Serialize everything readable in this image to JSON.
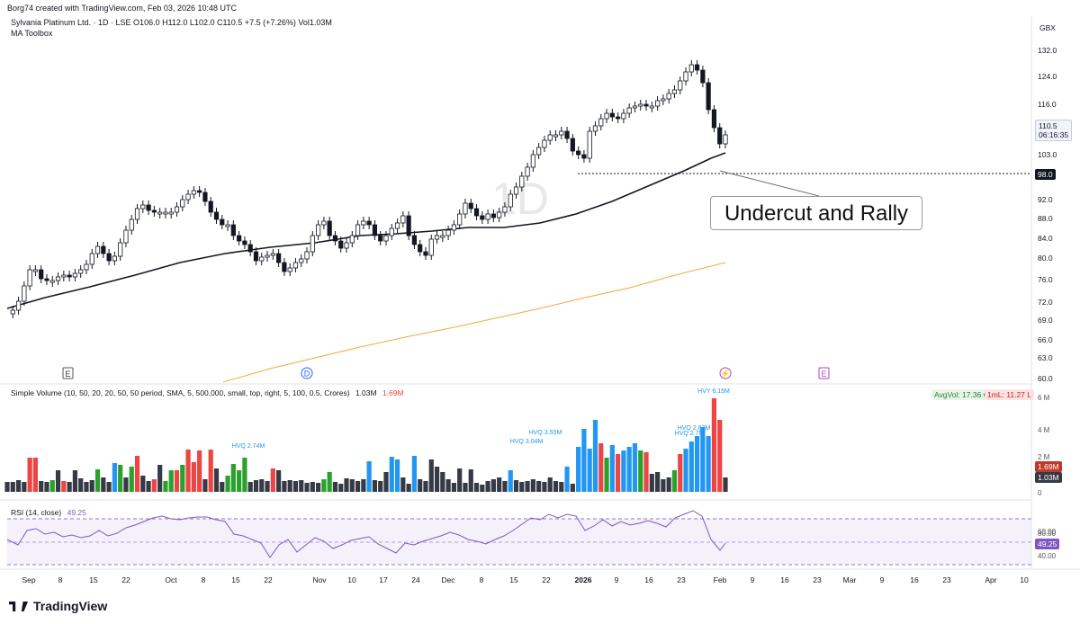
{
  "credit": "Borg74 created with TradingView.com, Feb 03, 2026 10:48 UTC",
  "symbol_line": "Sylvania Platinum Ltd. · 1D · LSE  O106.0  H112.0  L102.0  C110.5  +7.5 (+7.26%)  Vol1.03M",
  "indicator_label": "MA Toolbox",
  "currency": "GBX",
  "watermark": "1D",
  "annotation": "Undercut and Rally",
  "last_price": "110.5",
  "countdown": "06:16:35",
  "level_label": "98.0",
  "price_ticks": [
    "132.0",
    "124.0",
    "116.0",
    "110.0",
    "103.0",
    "98.0",
    "92.0",
    "88.0",
    "84.0",
    "80.0",
    "76.0",
    "72.0",
    "69.0",
    "66.0",
    "63.0",
    "60.0"
  ],
  "event_markers": [
    "E",
    "D",
    "E"
  ],
  "volume": {
    "label": "Simple Volume (10, 50, 20, 20, 50, 50 period, SMA, 5, 500,000, small, top, right, 5, 100, 0.5, Crores)",
    "value1": "1.03M",
    "value2": "1.69M",
    "avg_label": "AvgVol: 17.36 Cr",
    "ml_label": "1mL: 11.27 L",
    "axis": [
      "6 M",
      "4 M",
      "2 M",
      "0"
    ],
    "badge_hi": "1.69M",
    "badge_lo": "1.03M",
    "annotations": [
      "HVQ 2.74M",
      "HVQ 3.04M",
      "HVQ 3.55M",
      "HVY 6.15M",
      "HVQ 2.87M",
      "HVQ 2.7M"
    ]
  },
  "rsi": {
    "label": "RSI (14, close)",
    "value": "49.25",
    "axis": [
      "80.00",
      "60.00",
      "40.00"
    ],
    "badge": "49.25"
  },
  "time_axis": [
    "Sep",
    "8",
    "15",
    "22",
    "Oct",
    "8",
    "15",
    "22",
    "Nov",
    "10",
    "17",
    "24",
    "Dec",
    "8",
    "15",
    "22",
    "2026",
    "9",
    "16",
    "23",
    "Feb",
    "9",
    "16",
    "23",
    "Mar",
    "9",
    "16",
    "23",
    "Apr",
    "10"
  ],
  "brand": "TradingView",
  "colors": {
    "up_volume": "#2ca02c",
    "down_volume": "#ef4444",
    "hvq": "#2196f3",
    "neutral": "#363a45",
    "ma200": "#f2a93b",
    "rsi": "#7e57c2"
  }
}
